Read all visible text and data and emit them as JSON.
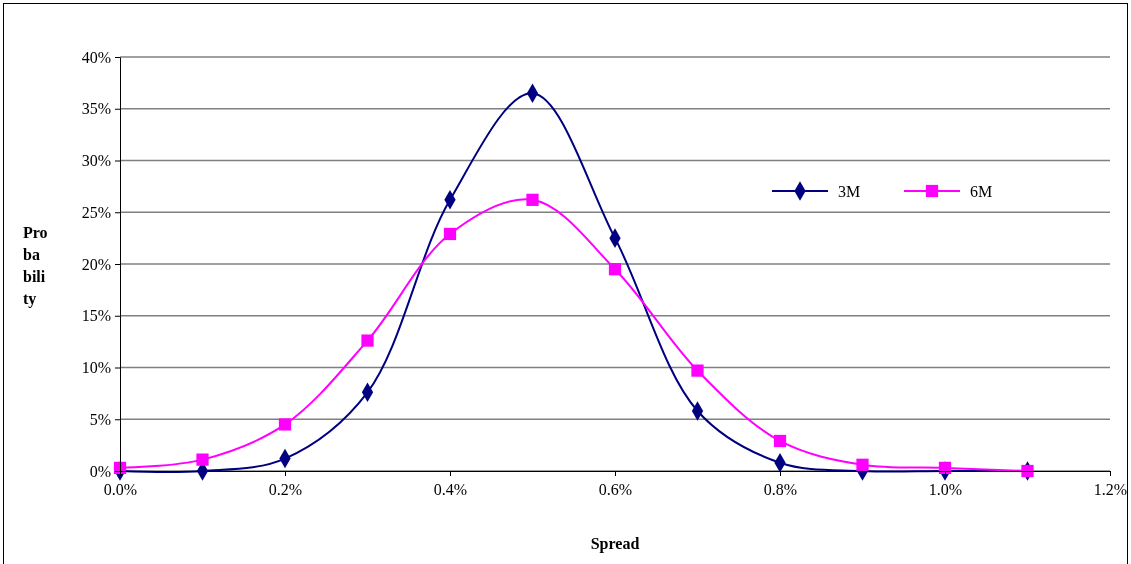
{
  "chart_data": {
    "type": "line",
    "xlabel": "Spread",
    "ylabel": "Probability",
    "x": [
      0,
      0.1,
      0.2,
      0.3,
      0.4,
      0.5,
      0.6,
      0.7,
      0.8,
      0.9,
      1.0,
      1.1
    ],
    "series": [
      {
        "name": "3M",
        "color": "#000080",
        "marker": "diamond",
        "values": [
          0,
          0,
          1.2,
          7.6,
          26.2,
          36.5,
          22.5,
          5.8,
          0.8,
          0,
          0,
          0
        ]
      },
      {
        "name": "6M",
        "color": "#ff00ff",
        "marker": "square",
        "values": [
          0.3,
          1.1,
          4.5,
          12.6,
          22.9,
          26.2,
          19.5,
          9.7,
          2.9,
          0.6,
          0.3,
          0
        ]
      }
    ],
    "xlim": [
      0,
      1.2
    ],
    "xticks": [
      {
        "value": 0,
        "label": "0.0%"
      },
      {
        "value": 0.2,
        "label": "0.2%"
      },
      {
        "value": 0.4,
        "label": "0.4%"
      },
      {
        "value": 0.6,
        "label": "0.6%"
      },
      {
        "value": 0.8,
        "label": "0.8%"
      },
      {
        "value": 1.0,
        "label": "1.0%"
      },
      {
        "value": 1.2,
        "label": "1.2%"
      }
    ],
    "ylim": [
      0,
      40
    ],
    "yticks": [
      {
        "value": 0,
        "label": "0%"
      },
      {
        "value": 5,
        "label": "5%"
      },
      {
        "value": 10,
        "label": "10%"
      },
      {
        "value": 15,
        "label": "15%"
      },
      {
        "value": 20,
        "label": "20%"
      },
      {
        "value": 25,
        "label": "25%"
      },
      {
        "value": 30,
        "label": "30%"
      },
      {
        "value": 35,
        "label": "35%"
      },
      {
        "value": 40,
        "label": "40%"
      }
    ],
    "grid": "y",
    "legend": "right",
    "line_style": "solid"
  }
}
